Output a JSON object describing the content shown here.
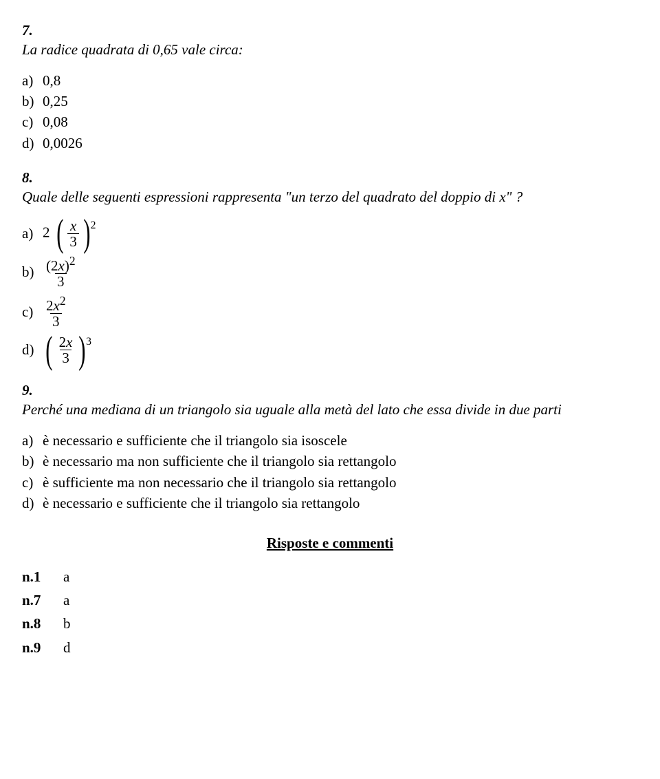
{
  "q7": {
    "number": "7.",
    "text": "La radice quadrata di  0,65  vale circa:",
    "options": [
      {
        "letter": "a)",
        "value": "0,8"
      },
      {
        "letter": "b)",
        "value": "0,25"
      },
      {
        "letter": "c)",
        "value": "0,08"
      },
      {
        "letter": "d)",
        "value": "0,0026"
      }
    ]
  },
  "q8": {
    "number": "8.",
    "text": "Quale delle seguenti espressioni rappresenta \"un terzo del quadrato del doppio di x\" ?",
    "var": "x",
    "den": "3",
    "opt_a": {
      "letter": "a)",
      "lead": "2",
      "exp": "2"
    },
    "opt_b": {
      "letter": "b)",
      "num_pre": "(2",
      "num_post": ")",
      "num_exp": "2"
    },
    "opt_c": {
      "letter": "c)",
      "num_pre": "2",
      "num_exp": "2"
    },
    "opt_d": {
      "letter": "d)",
      "num_pre": "2",
      "exp": "3"
    }
  },
  "q9": {
    "number": "9.",
    "text": "Perché una mediana di un triangolo sia uguale alla metà del lato che essa divide in due parti",
    "options": [
      {
        "letter": "a)",
        "value": "è necessario e sufficiente che il triangolo sia isoscele"
      },
      {
        "letter": "b)",
        "value": "è necessario ma non  sufficiente che il triangolo sia rettangolo"
      },
      {
        "letter": "c)",
        "value": "è sufficiente ma non necessario che il triangolo sia rettangolo"
      },
      {
        "letter": "d)",
        "value": "è necessario e  sufficiente che il triangolo sia rettangolo"
      }
    ]
  },
  "answers": {
    "title": "Risposte e commenti",
    "rows": [
      {
        "key": "n.1",
        "val": "a"
      },
      {
        "key": "n.7",
        "val": "a"
      },
      {
        "key": "n.8",
        "val": "b"
      },
      {
        "key": "n.9",
        "val": "d"
      }
    ]
  }
}
